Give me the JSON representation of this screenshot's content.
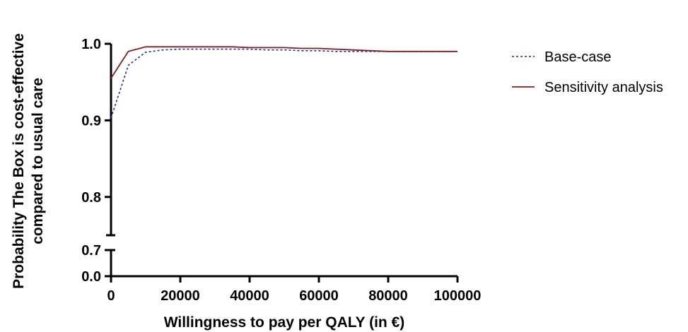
{
  "chart_data": {
    "type": "line",
    "xlabel": "Willingness to pay per QALY (in €)",
    "ylabel_lines": [
      "Probability The Box is cost-effective",
      "compared to usual care"
    ],
    "xlim": [
      0,
      100000
    ],
    "x_ticks": [
      "0",
      "20000",
      "40000",
      "60000",
      "80000",
      "100000"
    ],
    "y_ticks_upper": [
      "0.8",
      "0.9",
      "1.0"
    ],
    "y_ticks_lower": [
      "0.0",
      "0.7"
    ],
    "ylim_upper": [
      0.75,
      1.0
    ],
    "ylim_lower": [
      0.0,
      0.7
    ],
    "broken_y_axis": true,
    "grid": false,
    "legend_position": "right",
    "x": [
      0,
      5000,
      10000,
      15000,
      20000,
      25000,
      30000,
      35000,
      40000,
      45000,
      50000,
      55000,
      60000,
      65000,
      70000,
      75000,
      80000,
      85000,
      90000,
      95000,
      100000
    ],
    "series": [
      {
        "name": "Base-case",
        "color": "#1f2a9c",
        "style": "dotted",
        "values": [
          0.903,
          0.972,
          0.989,
          0.992,
          0.993,
          0.993,
          0.993,
          0.993,
          0.993,
          0.992,
          0.992,
          0.991,
          0.991,
          0.99,
          0.99,
          0.99,
          0.99,
          0.99,
          0.99,
          0.99,
          0.99
        ]
      },
      {
        "name": "Sensitivity analysis",
        "color": "#8b1a1a",
        "style": "solid",
        "values": [
          0.955,
          0.99,
          0.996,
          0.996,
          0.996,
          0.996,
          0.996,
          0.996,
          0.995,
          0.995,
          0.995,
          0.994,
          0.994,
          0.993,
          0.992,
          0.991,
          0.99,
          0.99,
          0.99,
          0.99,
          0.99
        ]
      }
    ]
  }
}
